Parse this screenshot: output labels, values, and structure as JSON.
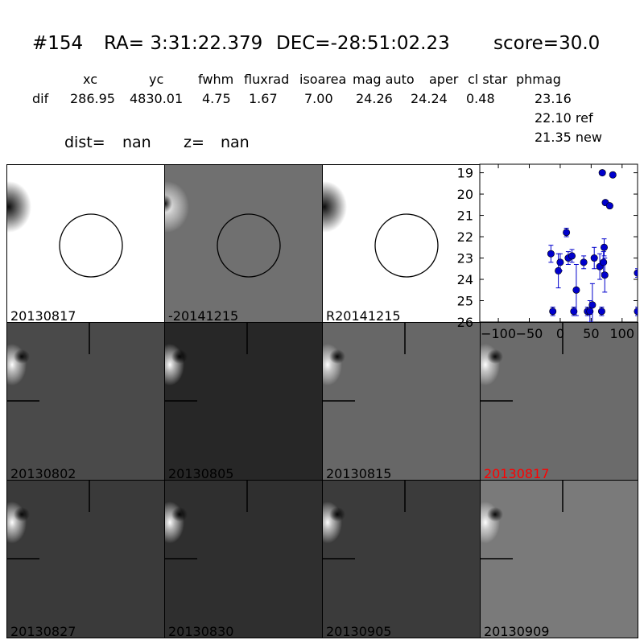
{
  "header": {
    "id": "#154",
    "ra": "RA= 3:31:22.379",
    "dec": "DEC=-28:51:02.23",
    "score": "score=30.0"
  },
  "table": {
    "columns": [
      "xc",
      "yc",
      "fwhm",
      "fluxrad",
      "isoarea",
      "mag auto",
      "aper",
      "cl star",
      "phmag"
    ],
    "row_label": "dif",
    "values": [
      "286.95",
      "4830.01",
      "4.75",
      "1.67",
      "7.00",
      "24.26",
      "24.24",
      "0.48",
      "23.16"
    ],
    "ref": "22.10 ref",
    "new": "21.35 new"
  },
  "meta": {
    "dist_label": "dist=",
    "dist_value": "nan",
    "z_label": "z=",
    "z_value": "nan"
  },
  "colors": {
    "highlight_label": "#ff0000",
    "point": "#0000cc"
  },
  "stamps": [
    {
      "label": "20130817",
      "bg": "#ffffff",
      "circle": true,
      "label_color": "#000000"
    },
    {
      "label": "-20141215",
      "bg": "#707070",
      "circle": true,
      "label_color": "#000000"
    },
    {
      "label": "R20141215",
      "bg": "#ffffff",
      "circle": true,
      "label_color": "#000000"
    },
    {
      "label": "20130802",
      "bg": "#4a4a4a",
      "circle": false,
      "label_color": "#000000"
    },
    {
      "label": "20130805",
      "bg": "#272727",
      "circle": false,
      "label_color": "#000000"
    },
    {
      "label": "20130815",
      "bg": "#676767",
      "circle": false,
      "label_color": "#000000"
    },
    {
      "label": "20130817",
      "bg": "#6b6b6b",
      "circle": false,
      "label_color": "#ff0000"
    },
    {
      "label": "20130827",
      "bg": "#3a3a3a",
      "circle": false,
      "label_color": "#000000"
    },
    {
      "label": "20130830",
      "bg": "#2f2f2f",
      "circle": false,
      "label_color": "#000000"
    },
    {
      "label": "20130905",
      "bg": "#3b3b3b",
      "circle": false,
      "label_color": "#000000"
    },
    {
      "label": "20130909",
      "bg": "#7a7a7a",
      "circle": false,
      "label_color": "#000000"
    }
  ],
  "chart_data": {
    "type": "scatter",
    "title": "",
    "xlabel": "",
    "ylabel": "",
    "xlim": [
      -130,
      125
    ],
    "ylim": [
      26,
      18.6
    ],
    "y_inverted": true,
    "xticks": [
      -100,
      -50,
      0,
      50,
      100
    ],
    "yticks": [
      19,
      20,
      21,
      22,
      23,
      24,
      25,
      26
    ],
    "points": [
      {
        "x": -15,
        "y": 22.8,
        "err": 0.4
      },
      {
        "x": -12,
        "y": 25.5,
        "err": 0.2
      },
      {
        "x": -3,
        "y": 23.6,
        "err": 0.8
      },
      {
        "x": 0,
        "y": 23.2,
        "err": 0.4
      },
      {
        "x": 10,
        "y": 21.8,
        "err": 0.2
      },
      {
        "x": 13,
        "y": 23.0,
        "err": 0.3
      },
      {
        "x": 19,
        "y": 22.9,
        "err": 0.3
      },
      {
        "x": 22,
        "y": 25.5,
        "err": 0.2
      },
      {
        "x": 26,
        "y": 24.5,
        "err": 1.2
      },
      {
        "x": 38,
        "y": 23.2,
        "err": 0.3
      },
      {
        "x": 44,
        "y": 25.5,
        "err": 0.2
      },
      {
        "x": 48,
        "y": 25.5,
        "err": 0.5
      },
      {
        "x": 52,
        "y": 25.2,
        "err": 1.0
      },
      {
        "x": 55,
        "y": 23.0,
        "err": 0.5
      },
      {
        "x": 64,
        "y": 23.4,
        "err": 0.6
      },
      {
        "x": 67,
        "y": 25.5,
        "err": 0.2
      },
      {
        "x": 68,
        "y": 19.0,
        "err": 0.1
      },
      {
        "x": 70,
        "y": 23.2,
        "err": 0.5
      },
      {
        "x": 71,
        "y": 22.5,
        "err": 0.4
      },
      {
        "x": 72,
        "y": 23.8,
        "err": 0.8
      },
      {
        "x": 73,
        "y": 20.4,
        "err": 0.1
      },
      {
        "x": 80,
        "y": 20.55,
        "err": 0.1
      },
      {
        "x": 85,
        "y": 19.1,
        "err": 0.1
      },
      {
        "x": 125,
        "y": 25.5,
        "err": 0.2
      },
      {
        "x": 125,
        "y": 23.7,
        "err": 0.2
      }
    ]
  }
}
